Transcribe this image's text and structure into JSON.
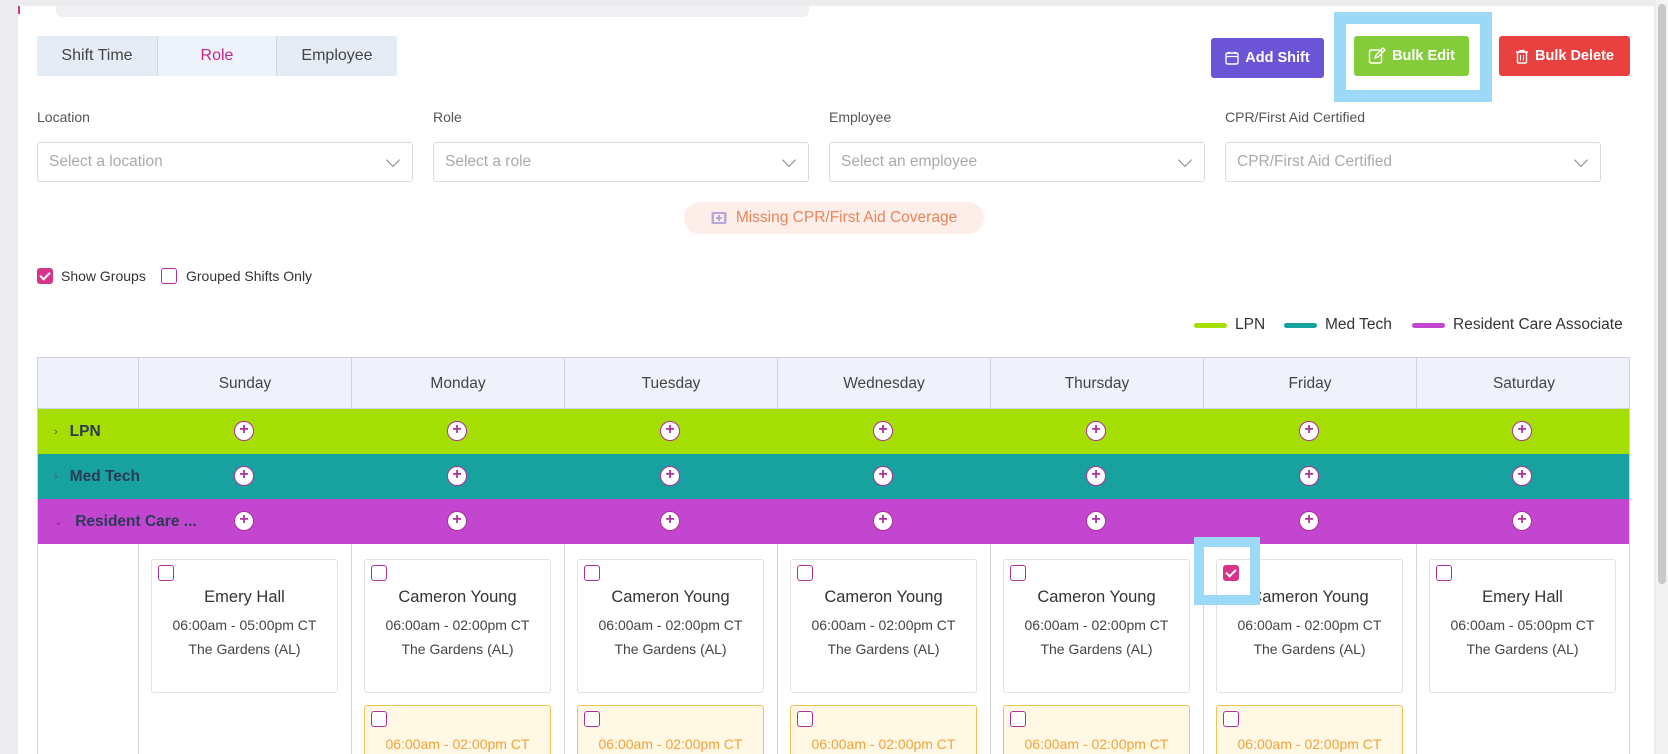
{
  "tabs": [
    "Shift Time",
    "Role",
    "Employee"
  ],
  "buttons": {
    "add_shift": "Add Shift",
    "bulk_edit": "Bulk Edit",
    "bulk_delete": "Bulk Delete"
  },
  "filters": [
    {
      "label": "Location",
      "placeholder": "Select a location"
    },
    {
      "label": "Role",
      "placeholder": "Select a role"
    },
    {
      "label": "Employee",
      "placeholder": "Select an employee"
    },
    {
      "label": "CPR/First Aid Certified",
      "placeholder": "CPR/First Aid Certified"
    }
  ],
  "missing_coverage": "Missing CPR/First Aid Coverage",
  "options": {
    "show_groups": "Show Groups",
    "show_groups_checked": true,
    "grouped_only": "Grouped Shifts Only",
    "grouped_only_checked": false
  },
  "legend": [
    {
      "label": "LPN",
      "color": "#a4de02"
    },
    {
      "label": "Med Tech",
      "color": "#17a2a0"
    },
    {
      "label": "Resident Care Associate",
      "color": "#c246d0"
    }
  ],
  "days": [
    "Sunday",
    "Monday",
    "Tuesday",
    "Wednesday",
    "Thursday",
    "Friday",
    "Saturday"
  ],
  "groups": [
    {
      "name": "LPN",
      "color": "#a4de02",
      "expanded": false
    },
    {
      "name": "Med Tech",
      "color": "#17a2a0",
      "expanded": false
    },
    {
      "name": "Resident Care ...",
      "color": "#c246d0",
      "expanded": true
    }
  ],
  "shifts": [
    {
      "name": "Emery Hall",
      "time": "06:00am - 05:00pm CT",
      "location": "The Gardens (AL)",
      "checked": false
    },
    {
      "name": "Cameron Young",
      "time": "06:00am - 02:00pm CT",
      "location": "The Gardens (AL)",
      "checked": false
    },
    {
      "name": "Cameron Young",
      "time": "06:00am - 02:00pm CT",
      "location": "The Gardens (AL)",
      "checked": false
    },
    {
      "name": "Cameron Young",
      "time": "06:00am - 02:00pm CT",
      "location": "The Gardens (AL)",
      "checked": false
    },
    {
      "name": "Cameron Young",
      "time": "06:00am - 02:00pm CT",
      "location": "The Gardens (AL)",
      "checked": false
    },
    {
      "name": "Cameron Young",
      "time": "06:00am - 02:00pm CT",
      "location": "The Gardens (AL)",
      "checked": true
    },
    {
      "name": "Emery Hall",
      "time": "06:00am - 05:00pm CT",
      "location": "The Gardens (AL)",
      "checked": false
    }
  ],
  "open_shifts": [
    {
      "time": "06:00am - 02:00pm CT"
    },
    {
      "time": "06:00am - 02:00pm CT"
    },
    {
      "time": "06:00am - 02:00pm CT"
    },
    {
      "time": "06:00am - 02:00pm CT"
    },
    {
      "time": "06:00am - 02:00pm CT"
    }
  ]
}
